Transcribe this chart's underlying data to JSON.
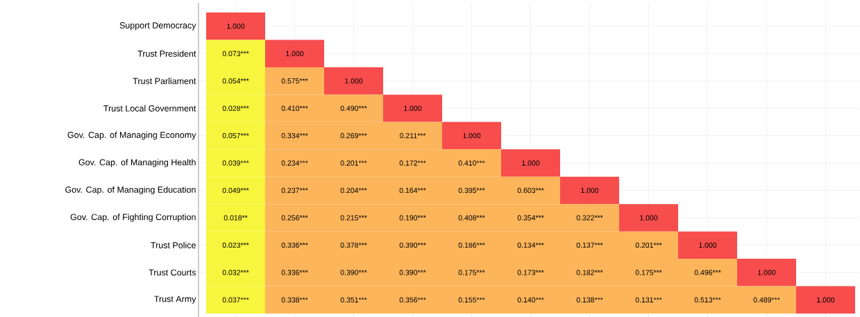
{
  "chart_data": {
    "type": "heatmap",
    "grid": true,
    "categories": [
      null,
      null,
      null,
      null,
      null,
      null,
      null,
      null,
      null,
      null,
      null
    ],
    "y_categories": [
      "Support Democracy",
      "Trust President",
      "Trust Parliament",
      "Trust Local Government",
      "Gov. Cap. of Managing Economy",
      "Gov. Cap. of Managing Health",
      "Gov. Cap. of Managing Education",
      "Gov. Cap. of Fighting Corruption",
      "Trust Police",
      "Trust Courts",
      "Trust Army"
    ],
    "cells": [
      [
        1.0,
        null,
        null,
        null,
        null,
        null,
        null,
        null,
        null,
        null,
        null
      ],
      [
        0.073,
        1.0,
        null,
        null,
        null,
        null,
        null,
        null,
        null,
        null,
        null
      ],
      [
        0.054,
        0.575,
        1.0,
        null,
        null,
        null,
        null,
        null,
        null,
        null,
        null
      ],
      [
        0.028,
        0.41,
        0.49,
        1.0,
        null,
        null,
        null,
        null,
        null,
        null,
        null
      ],
      [
        0.057,
        0.334,
        0.269,
        0.211,
        1.0,
        null,
        null,
        null,
        null,
        null,
        null
      ],
      [
        0.039,
        0.234,
        0.201,
        0.172,
        0.41,
        1.0,
        null,
        null,
        null,
        null,
        null
      ],
      [
        0.049,
        0.237,
        0.204,
        0.164,
        0.395,
        0.603,
        1.0,
        null,
        null,
        null,
        null
      ],
      [
        0.018,
        0.256,
        0.215,
        0.19,
        0.408,
        0.354,
        0.322,
        1.0,
        null,
        null,
        null
      ],
      [
        0.023,
        0.336,
        0.378,
        0.39,
        0.186,
        0.134,
        0.137,
        0.201,
        1.0,
        null,
        null
      ],
      [
        0.032,
        0.336,
        0.39,
        0.39,
        0.175,
        0.173,
        0.182,
        0.175,
        0.496,
        1.0,
        null
      ],
      [
        0.037,
        0.338,
        0.351,
        0.356,
        0.155,
        0.14,
        0.138,
        0.131,
        0.513,
        0.489,
        1.0
      ]
    ],
    "cell_labels": [
      [
        "1.000",
        null,
        null,
        null,
        null,
        null,
        null,
        null,
        null,
        null,
        null
      ],
      [
        "0.073***",
        "1.000",
        null,
        null,
        null,
        null,
        null,
        null,
        null,
        null,
        null
      ],
      [
        "0.054***",
        "0.575***",
        "1.000",
        null,
        null,
        null,
        null,
        null,
        null,
        null,
        null
      ],
      [
        "0.028***",
        "0.410***",
        "0.490***",
        "1.000",
        null,
        null,
        null,
        null,
        null,
        null,
        null
      ],
      [
        "0.057***",
        "0.334***",
        "0.269***",
        "0.211***",
        "1.000",
        null,
        null,
        null,
        null,
        null,
        null
      ],
      [
        "0.039***",
        "0.234***",
        "0.201***",
        "0.172***",
        "0.410***",
        "1.000",
        null,
        null,
        null,
        null,
        null
      ],
      [
        "0.049***",
        "0.237***",
        "0.204***",
        "0.164***",
        "0.395***",
        "0.603***",
        "1.000",
        null,
        null,
        null,
        null
      ],
      [
        "0.018**",
        "0.256***",
        "0.215***",
        "0.190***",
        "0.408***",
        "0.354***",
        "0.322***",
        "1.000",
        null,
        null,
        null
      ],
      [
        "0.023***",
        "0.336***",
        "0.378***",
        "0.390***",
        "0.186***",
        "0.134***",
        "0.137***",
        "0.201***",
        "1.000",
        null,
        null
      ],
      [
        "0.032***",
        "0.336***",
        "0.390***",
        "0.390***",
        "0.175***",
        "0.173***",
        "0.182***",
        "0.175***",
        "0.496***",
        "1.000",
        null
      ],
      [
        "0.037***",
        "0.338***",
        "0.351***",
        "0.356***",
        "0.155***",
        "0.140***",
        "0.138***",
        "0.131***",
        "0.513***",
        "0.489***",
        "1.000"
      ]
    ],
    "colors": [
      [
        "#f74d4d",
        null,
        null,
        null,
        null,
        null,
        null,
        null,
        null,
        null,
        null
      ],
      [
        "#f8f53f",
        "#f74d4d",
        null,
        null,
        null,
        null,
        null,
        null,
        null,
        null,
        null
      ],
      [
        "#f8f53f",
        "#fdb55b",
        "#f74d4d",
        null,
        null,
        null,
        null,
        null,
        null,
        null,
        null
      ],
      [
        "#f8f53f",
        "#fdb55b",
        "#fdb55b",
        "#f74d4d",
        null,
        null,
        null,
        null,
        null,
        null,
        null
      ],
      [
        "#f8f53f",
        "#fdb55b",
        "#fdb55b",
        "#fdb55b",
        "#f74d4d",
        null,
        null,
        null,
        null,
        null,
        null
      ],
      [
        "#f8f53f",
        "#fdb55b",
        "#fdb55b",
        "#fdb55b",
        "#fdb55b",
        "#f74d4d",
        null,
        null,
        null,
        null,
        null
      ],
      [
        "#f8f53f",
        "#fdb55b",
        "#fdb55b",
        "#fdb55b",
        "#fdb55b",
        "#fdb55b",
        "#f74d4d",
        null,
        null,
        null,
        null
      ],
      [
        "#f8f53f",
        "#fdb55b",
        "#fdb55b",
        "#fdb55b",
        "#fdb55b",
        "#fdb55b",
        "#fdb55b",
        "#f74d4d",
        null,
        null,
        null
      ],
      [
        "#f8f53f",
        "#fdb55b",
        "#fdb55b",
        "#fdb55b",
        "#fdb55b",
        "#fdb55b",
        "#fdb55b",
        "#fdb55b",
        "#f74d4d",
        null,
        null
      ],
      [
        "#f8f53f",
        "#fdb55b",
        "#fdb55b",
        "#fdb55b",
        "#fdb55b",
        "#fdb55b",
        "#fdb55b",
        "#fdb55b",
        "#fdb55b",
        "#f74d4d",
        null
      ],
      [
        "#f8f53f",
        "#fdb55b",
        "#fdb55b",
        "#fdb55b",
        "#fdb55b",
        "#fdb55b",
        "#fdb55b",
        "#fdb55b",
        "#fdb55b",
        "#fdb55b",
        "#f74d4d"
      ]
    ]
  }
}
